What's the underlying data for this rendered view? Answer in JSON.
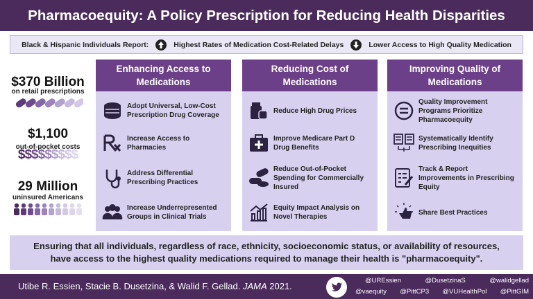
{
  "header": {
    "title": "Pharmacoequity: A Policy Prescription for Reducing Health Disparities"
  },
  "banner": {
    "lead": "Black & Hispanic Individuals Report:",
    "items": [
      "Highest Rates of Medication Cost-Related Delays",
      "Lower Access to High Quality Medication"
    ]
  },
  "stats": [
    {
      "value": "$370 Billion",
      "label": "on retail prescriptions"
    },
    {
      "value": "$1,100",
      "label": "out-of-pocket costs",
      "graphic": "$$$$$$$$$"
    },
    {
      "value": "29 Million",
      "label": "uninsured Americans"
    }
  ],
  "columns": [
    {
      "title": "Enhancing Access to Medications",
      "items": [
        "Adopt Universal, Low-Cost Prescription Drug Coverage",
        "Increase Access to Pharmacies",
        "Address Differential Prescribing Practices",
        "Increase Underrepresented Groups in Clinical Trials"
      ]
    },
    {
      "title": "Reducing Cost of Medications",
      "items": [
        "Reduce High Drug Prices",
        "Improve Medicare Part D Drug Benefits",
        "Reduce Out-of-Pocket Spending for Commercially Insured",
        "Equity Impact Analysis on Novel Therapies"
      ]
    },
    {
      "title": "Improving Quality of Medications",
      "items": [
        "Quality Improvement Programs Prioritize Pharmacoequity",
        "Systematically Identify Prescribing Inequities",
        "Track & Report Improvements in Prescribing Equity",
        "Share Best Practices"
      ]
    }
  ],
  "statement": "Ensuring that all individuals, regardless of race, ethnicity, socioeconomic status, or availability of resources, have access to the highest quality medications required to manage their health is \"pharmacoequity\".",
  "footer": {
    "authors": "Utibe R. Essien, Stacie B. Dusetzina, & Walid F. Gellad.",
    "journal": "JAMA",
    "year": "2021.",
    "handles": [
      [
        "@UREssien",
        "@DusetzinaS",
        "@walidgellad"
      ],
      [
        "@vaequity",
        "@PittCP3",
        "@VUHealthPol",
        "@PittGIM"
      ]
    ]
  }
}
